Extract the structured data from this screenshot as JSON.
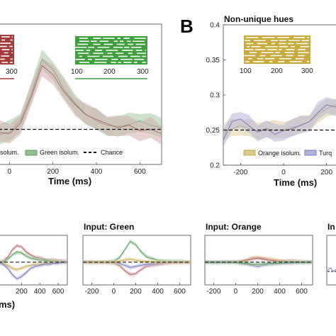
{
  "chart_data": [
    {
      "type": "line",
      "panel": "A",
      "xlabel": "Time (ms)",
      "xticks": [
        0,
        200,
        400,
        600
      ],
      "xlim": [
        -50,
        700
      ],
      "ylim": [
        0.2,
        0.4
      ],
      "series": [
        {
          "name": "Green isolum.",
          "color": "#5aa05a",
          "x": [
            -50,
            0,
            50,
            100,
            150,
            200,
            250,
            300,
            350,
            400,
            450,
            500,
            550,
            600,
            650,
            700
          ],
          "y": [
            0.242,
            0.246,
            0.262,
            0.3,
            0.349,
            0.336,
            0.307,
            0.288,
            0.272,
            0.262,
            0.256,
            0.254,
            0.257,
            0.262,
            0.256,
            0.252
          ]
        },
        {
          "name": "Red isolum.",
          "color": "#b06a6a",
          "x": [
            -50,
            0,
            50,
            100,
            150,
            200,
            250,
            300,
            350,
            400,
            450,
            500,
            550,
            600,
            650,
            700
          ],
          "y": [
            0.246,
            0.244,
            0.258,
            0.296,
            0.341,
            0.328,
            0.304,
            0.286,
            0.271,
            0.264,
            0.258,
            0.252,
            0.256,
            0.248,
            0.25,
            0.244
          ]
        },
        {
          "name": "Chance",
          "style": "dashed",
          "x": [
            -50,
            700
          ],
          "y": [
            0.25,
            0.25
          ]
        }
      ],
      "legend": [
        "isolum.",
        "Green isolum.",
        "Chance"
      ],
      "inset": {
        "x_ticks": [
          "100",
          "200",
          "300"
        ],
        "left_tick": "300"
      }
    },
    {
      "type": "line",
      "panel": "B",
      "title": "Non-unique hues",
      "xlabel": "Time (ms)",
      "xticks": [
        -200,
        0,
        200
      ],
      "xlim": [
        -280,
        280
      ],
      "ylim": [
        0.2,
        0.4
      ],
      "yticks": [
        0.2,
        0.25,
        0.3,
        0.35,
        0.4
      ],
      "series": [
        {
          "name": "Orange isolum.",
          "color": "#c7a94a",
          "x": [
            -280,
            -240,
            -200,
            -160,
            -120,
            -80,
            -40,
            0,
            40,
            80,
            120,
            160,
            200,
            240,
            280
          ],
          "y": [
            0.246,
            0.252,
            0.256,
            0.252,
            0.248,
            0.253,
            0.249,
            0.251,
            0.254,
            0.256,
            0.262,
            0.272,
            0.28,
            0.286,
            0.278
          ]
        },
        {
          "name": "Turquoise isolum.",
          "color": "#7a78b8",
          "x": [
            -280,
            -240,
            -200,
            -160,
            -120,
            -80,
            -40,
            0,
            40,
            80,
            120,
            160,
            200,
            240,
            280
          ],
          "y": [
            0.236,
            0.262,
            0.266,
            0.256,
            0.247,
            0.252,
            0.244,
            0.249,
            0.252,
            0.257,
            0.262,
            0.275,
            0.286,
            0.283,
            0.288
          ]
        },
        {
          "name": "Chance",
          "style": "dashed",
          "x": [
            -280,
            280
          ],
          "y": [
            0.25,
            0.25
          ]
        }
      ],
      "legend": [
        "Orange isolum.",
        "Turq"
      ],
      "inset": {
        "x_ticks": [
          "100",
          "200",
          "300"
        ]
      }
    },
    {
      "type": "line",
      "panel": "C1",
      "xticks": [
        200,
        400,
        600
      ],
      "xlim": [
        -50,
        700
      ],
      "series": [
        {
          "name": "red",
          "color": "#b06a6a",
          "x": [
            -50,
            0,
            50,
            100,
            150,
            200,
            250,
            300,
            350,
            400,
            450,
            500,
            550,
            600,
            650,
            700
          ],
          "y": [
            0.0,
            0.01,
            0.05,
            0.12,
            0.16,
            0.15,
            0.1,
            0.07,
            0.05,
            0.04,
            0.03,
            0.02,
            0.02,
            0.02,
            0.01,
            0.01
          ]
        },
        {
          "name": "green",
          "color": "#5aa05a",
          "x": [
            -50,
            0,
            50,
            100,
            150,
            200,
            250,
            300,
            350,
            400,
            450,
            500,
            550,
            600,
            650,
            700
          ],
          "y": [
            0.0,
            0.0,
            0.03,
            0.07,
            0.1,
            0.09,
            0.06,
            0.04,
            0.03,
            0.02,
            0.02,
            0.01,
            0.01,
            0.01,
            0.0,
            0.0
          ]
        },
        {
          "name": "orange",
          "color": "#c7a94a",
          "x": [
            -50,
            0,
            50,
            100,
            150,
            200,
            250,
            300,
            350,
            400,
            450,
            500,
            550,
            600,
            650,
            700
          ],
          "y": [
            0.0,
            -0.01,
            -0.03,
            -0.06,
            -0.07,
            -0.06,
            -0.04,
            -0.03,
            -0.02,
            -0.02,
            -0.01,
            -0.01,
            0.0,
            0.0,
            0.0,
            0.0
          ]
        },
        {
          "name": "purple",
          "color": "#7a78b8",
          "x": [
            -50,
            0,
            50,
            100,
            150,
            200,
            250,
            300,
            350,
            400,
            450,
            500,
            550,
            600,
            650,
            700
          ],
          "y": [
            0.0,
            -0.02,
            -0.06,
            -0.12,
            -0.16,
            -0.14,
            -0.1,
            -0.06,
            -0.04,
            -0.03,
            -0.02,
            -0.02,
            -0.01,
            -0.01,
            0.0,
            0.0
          ]
        }
      ]
    },
    {
      "type": "line",
      "panel": "C2",
      "title": "Input: Green",
      "xticks": [
        -200,
        0,
        200,
        400,
        600
      ],
      "xlim": [
        -280,
        700
      ],
      "series": [
        {
          "name": "green",
          "color": "#5aa05a",
          "x": [
            -280,
            -200,
            -100,
            0,
            50,
            100,
            150,
            200,
            250,
            300,
            400,
            500,
            600,
            700
          ],
          "y": [
            0.0,
            0.0,
            0.0,
            0.01,
            0.04,
            0.12,
            0.2,
            0.17,
            0.1,
            0.05,
            0.02,
            0.01,
            0.01,
            0.0
          ]
        },
        {
          "name": "red",
          "color": "#b06a6a",
          "x": [
            -280,
            -200,
            -100,
            0,
            50,
            100,
            150,
            200,
            250,
            300,
            400,
            500,
            600,
            700
          ],
          "y": [
            0.0,
            0.0,
            0.0,
            -0.01,
            -0.03,
            -0.08,
            -0.12,
            -0.11,
            -0.07,
            -0.04,
            -0.02,
            -0.01,
            0.0,
            0.0
          ]
        },
        {
          "name": "purple",
          "color": "#7a78b8",
          "x": [
            -280,
            -200,
            -100,
            0,
            50,
            100,
            150,
            200,
            250,
            300,
            400,
            500,
            600,
            700
          ],
          "y": [
            0.0,
            0.0,
            0.0,
            0.0,
            -0.01,
            -0.03,
            -0.05,
            -0.04,
            -0.03,
            -0.02,
            -0.01,
            0.0,
            0.0,
            0.0
          ]
        },
        {
          "name": "orange",
          "color": "#c7a94a",
          "x": [
            -280,
            -200,
            -100,
            0,
            50,
            100,
            150,
            200,
            250,
            300,
            400,
            500,
            600,
            700
          ],
          "y": [
            0.0,
            0.0,
            0.0,
            0.0,
            0.01,
            0.02,
            0.03,
            0.02,
            0.01,
            0.01,
            0.0,
            0.0,
            0.0,
            0.0
          ]
        }
      ]
    },
    {
      "type": "line",
      "panel": "C3",
      "title": "Input: Orange",
      "xticks": [
        -200,
        0,
        200,
        400,
        600
      ],
      "xlim": [
        -280,
        700
      ],
      "series": [
        {
          "name": "orange",
          "color": "#c7a94a",
          "x": [
            -280,
            -200,
            -100,
            0,
            50,
            100,
            150,
            200,
            250,
            300,
            400,
            500,
            600,
            700
          ],
          "y": [
            0.0,
            0.0,
            0.0,
            0.0,
            0.01,
            0.02,
            0.04,
            0.05,
            0.04,
            0.03,
            0.02,
            0.01,
            0.01,
            0.0
          ]
        },
        {
          "name": "red",
          "color": "#b06a6a",
          "x": [
            -280,
            -200,
            -100,
            0,
            50,
            100,
            150,
            200,
            250,
            300,
            400,
            500,
            600,
            700
          ],
          "y": [
            0.0,
            0.0,
            0.0,
            0.0,
            0.01,
            0.02,
            0.03,
            0.04,
            0.03,
            0.02,
            0.01,
            0.01,
            0.0,
            0.0
          ]
        },
        {
          "name": "purple",
          "color": "#7a78b8",
          "x": [
            -280,
            -200,
            -100,
            0,
            50,
            100,
            150,
            200,
            250,
            300,
            400,
            500,
            600,
            700
          ],
          "y": [
            0.0,
            0.0,
            0.0,
            0.0,
            -0.01,
            -0.02,
            -0.03,
            -0.04,
            -0.03,
            -0.02,
            -0.01,
            -0.01,
            0.0,
            0.0
          ]
        },
        {
          "name": "green",
          "color": "#5aa05a",
          "x": [
            -280,
            -200,
            -100,
            0,
            50,
            100,
            150,
            200,
            250,
            300,
            400,
            500,
            600,
            700
          ],
          "y": [
            0.0,
            0.0,
            0.0,
            0.0,
            -0.01,
            -0.01,
            -0.02,
            -0.02,
            -0.02,
            -0.01,
            -0.01,
            0.0,
            0.0,
            0.0
          ]
        }
      ]
    },
    {
      "type": "line",
      "panel": "C4",
      "title": "In"
    }
  ],
  "panel_labels": {
    "b": "B"
  },
  "bottom_xlabel_fragment": "ms)"
}
